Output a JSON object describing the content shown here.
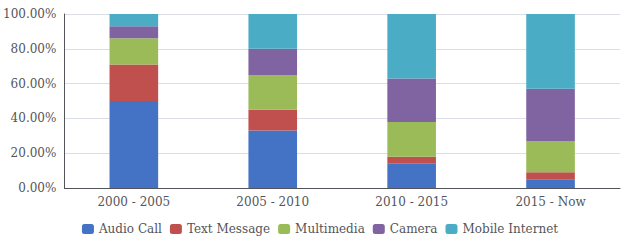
{
  "chart_data": {
    "type": "bar",
    "stacked": true,
    "categories": [
      "2000 - 2005",
      "2005 - 2010",
      "2010 - 2015",
      "2015 - Now"
    ],
    "series": [
      {
        "name": "Audio Call",
        "color": "#4472C4",
        "values": [
          50,
          33,
          14,
          5
        ]
      },
      {
        "name": "Text Message",
        "color": "#C0504D",
        "values": [
          21,
          12,
          4,
          4
        ]
      },
      {
        "name": "Multimedia",
        "color": "#9BBB59",
        "values": [
          15,
          20,
          20,
          18
        ]
      },
      {
        "name": "Camera",
        "color": "#8064A2",
        "values": [
          7,
          15,
          25,
          30
        ]
      },
      {
        "name": "Mobile Internet",
        "color": "#4BACC6",
        "values": [
          7,
          20,
          37,
          43
        ]
      }
    ],
    "ylim": [
      0,
      100
    ],
    "yticks": [
      {
        "value": 0,
        "label": "0.00%"
      },
      {
        "value": 20,
        "label": "20.00%"
      },
      {
        "value": 40,
        "label": "40.00%"
      },
      {
        "value": 60,
        "label": "60.00%"
      },
      {
        "value": 80,
        "label": "80.00%"
      },
      {
        "value": 100,
        "label": "100.00%"
      }
    ],
    "grid": true,
    "legend": "bottom"
  }
}
